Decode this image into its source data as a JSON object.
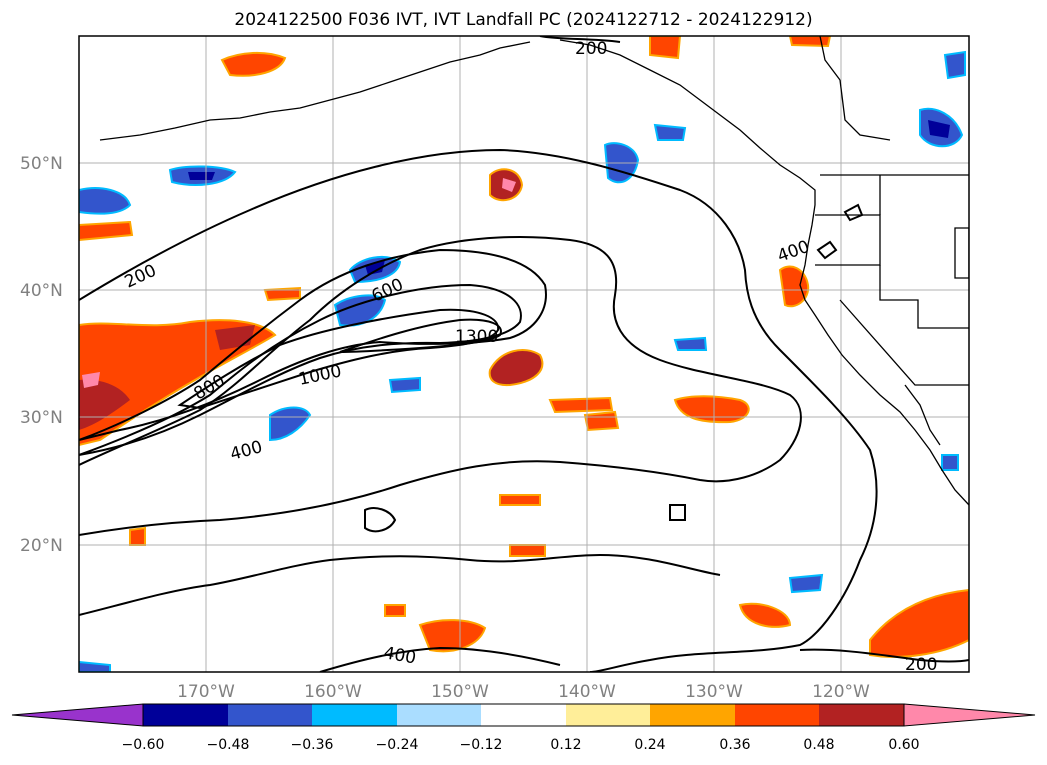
{
  "title": "2024122500 F036 IVT, IVT Landfall PC (2024122712 - 2024122912)",
  "map": {
    "lon_range": [
      -180,
      -110
    ],
    "lat_range": [
      10,
      60
    ],
    "lat_ticks": [
      {
        "value": 20,
        "label": "20°N"
      },
      {
        "value": 30,
        "label": "30°N"
      },
      {
        "value": 40,
        "label": "40°N"
      },
      {
        "value": 50,
        "label": "50°N"
      }
    ],
    "lon_ticks": [
      {
        "value": -170,
        "label": "170°W"
      },
      {
        "value": -160,
        "label": "160°W"
      },
      {
        "value": -150,
        "label": "150°W"
      },
      {
        "value": -140,
        "label": "140°W"
      },
      {
        "value": -130,
        "label": "130°W"
      },
      {
        "value": -120,
        "label": "120°W"
      }
    ],
    "grid": true
  },
  "contour_labels": [
    "200",
    "400",
    "600",
    "800",
    "1000",
    "1300",
    "400",
    "200",
    "400",
    "200"
  ],
  "colorbar": {
    "ticks": [
      "−0.60",
      "−0.48",
      "−0.36",
      "−0.24",
      "−0.12",
      "0.12",
      "0.24",
      "0.36",
      "0.48",
      "0.60"
    ],
    "colors": [
      "#9933cc",
      "#000099",
      "#3355cc",
      "#00bbff",
      "#aaddff",
      "#ffffff",
      "#ffee99",
      "#ffa500",
      "#ff4500",
      "#b22222",
      "#ff88aa"
    ]
  }
}
